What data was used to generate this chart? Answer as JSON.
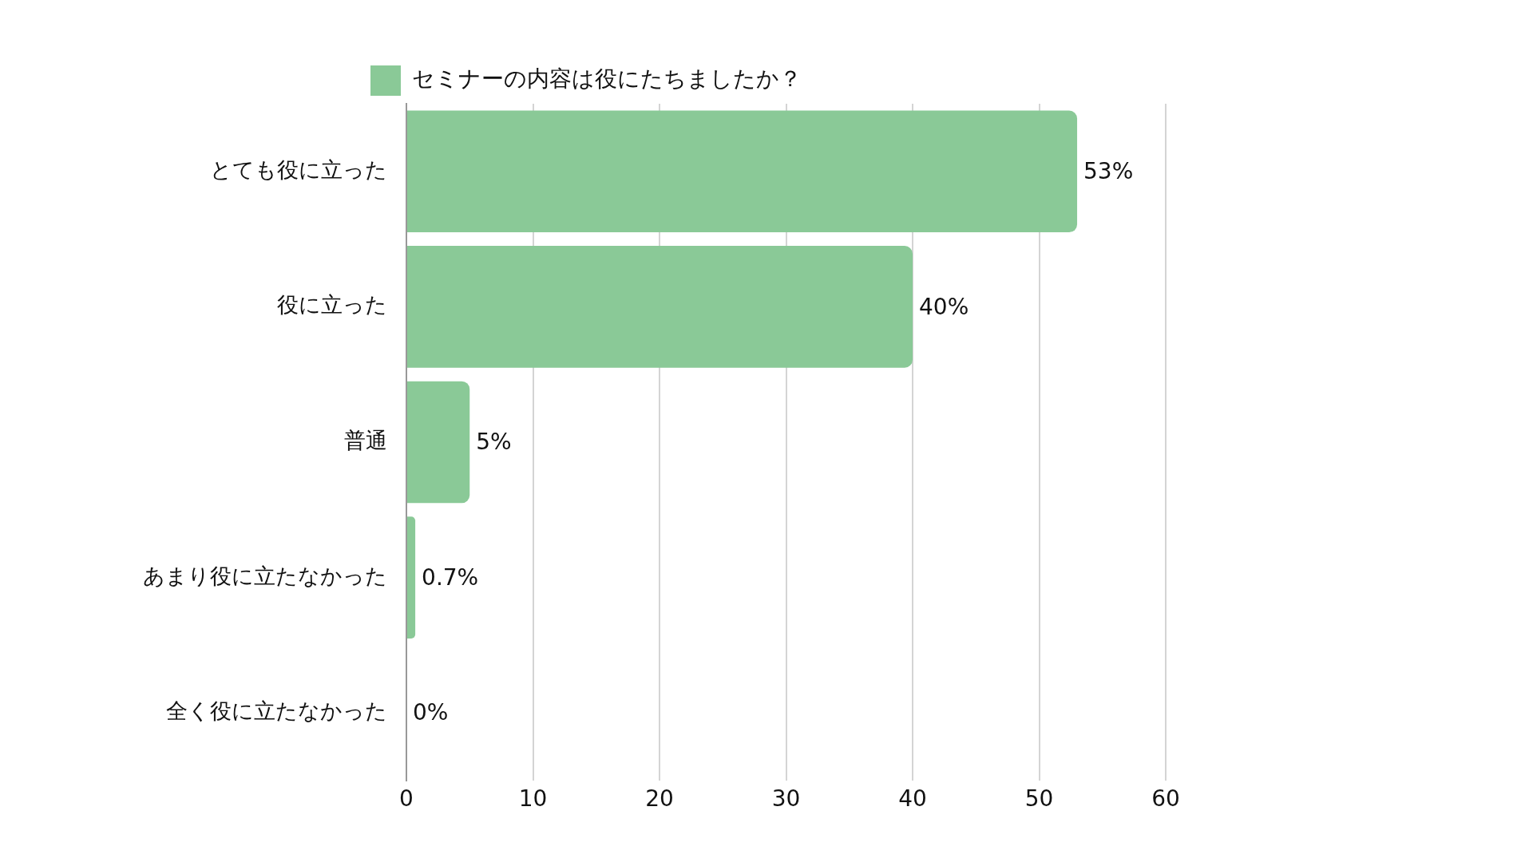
{
  "chart_data": {
    "type": "bar",
    "orientation": "horizontal",
    "categories": [
      "とても役に立った",
      "役に立った",
      "普通",
      "あまり役に立たなかった",
      "全く役に立たなかった"
    ],
    "series": [
      {
        "name": "セミナーの内容は役にたちましたか？",
        "color": "#8ac997",
        "values": [
          53,
          40,
          5,
          0.7,
          0
        ],
        "value_labels": [
          "53%",
          "40%",
          "5%",
          "0.7%",
          "0%"
        ]
      }
    ],
    "xlim": [
      0,
      60
    ],
    "xticks": [
      0,
      10,
      20,
      30,
      40,
      50,
      60
    ],
    "grid": "x",
    "legend": "top"
  }
}
